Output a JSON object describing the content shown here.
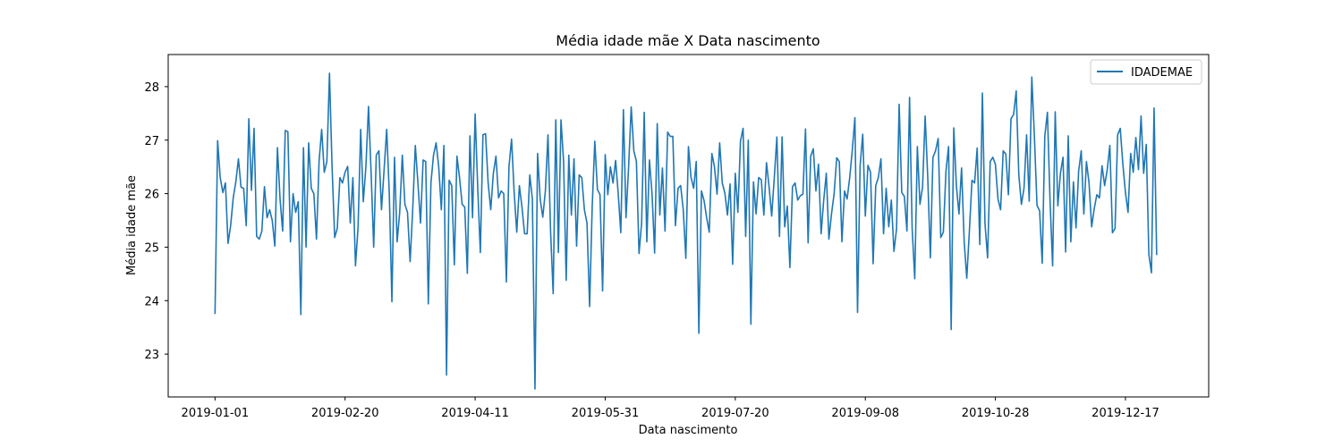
{
  "chart_data": {
    "type": "line",
    "title": "Média idade mãe X Data nascimento",
    "xlabel": "Data nascimento",
    "ylabel": "Média idade mãe",
    "xlim": [
      "2018-12-14",
      "2020-01-18"
    ],
    "ylim": [
      22.2,
      28.6
    ],
    "grid": false,
    "legend_position": "top-right",
    "x_start": "2019-01-01",
    "x_tick_labels": [
      "2019-01-01",
      "2019-02-20",
      "2019-04-11",
      "2019-05-31",
      "2019-07-20",
      "2019-09-08",
      "2019-10-28",
      "2019-12-17"
    ],
    "y_tick_labels": [
      "23",
      "24",
      "25",
      "26",
      "27",
      "28"
    ],
    "series": [
      {
        "name": "IDADEMAE",
        "color": "#1f77b4",
        "values": [
          23.75,
          26.99,
          26.3,
          26.02,
          26.2,
          25.07,
          25.4,
          25.92,
          26.22,
          26.65,
          26.12,
          26.1,
          25.4,
          27.4,
          26.06,
          27.22,
          25.2,
          25.15,
          25.3,
          26.13,
          25.55,
          25.7,
          25.5,
          25.02,
          26.86,
          25.9,
          25.3,
          27.18,
          27.16,
          25.1,
          26.0,
          25.65,
          25.85,
          23.74,
          26.86,
          25.0,
          26.95,
          26.1,
          26.0,
          25.15,
          26.6,
          27.2,
          26.4,
          26.6,
          28.25,
          26.5,
          25.18,
          25.35,
          26.3,
          26.2,
          26.4,
          26.51,
          25.45,
          26.3,
          24.65,
          25.38,
          27.2,
          25.85,
          26.5,
          27.63,
          26.4,
          25.0,
          26.72,
          26.8,
          25.7,
          26.45,
          27.2,
          26.0,
          23.98,
          26.68,
          25.1,
          25.65,
          26.72,
          25.8,
          25.65,
          24.73,
          25.7,
          26.9,
          26.2,
          25.45,
          26.63,
          26.6,
          23.94,
          26.2,
          26.72,
          26.95,
          26.5,
          25.7,
          26.9,
          22.61,
          26.25,
          26.15,
          24.67,
          26.7,
          26.3,
          25.8,
          25.75,
          24.51,
          27.08,
          25.55,
          27.49,
          26.1,
          24.9,
          27.1,
          27.12,
          26.2,
          25.7,
          26.38,
          26.7,
          25.92,
          26.05,
          26.0,
          24.35,
          26.5,
          27.02,
          26.02,
          25.28,
          26.15,
          25.75,
          25.25,
          25.25,
          26.35,
          25.9,
          22.35,
          26.75,
          25.9,
          25.56,
          26.05,
          27.1,
          25.3,
          24.13,
          27.38,
          24.9,
          27.38,
          26.6,
          24.38,
          26.72,
          25.6,
          26.65,
          25.02,
          26.35,
          26.3,
          25.7,
          25.45,
          23.89,
          25.75,
          26.98,
          26.08,
          25.98,
          24.18,
          26.73,
          25.98,
          26.5,
          26.2,
          26.62,
          26.0,
          25.27,
          27.57,
          25.55,
          26.5,
          27.62,
          26.8,
          26.6,
          24.88,
          25.45,
          27.52,
          25.1,
          26.63,
          26.0,
          24.89,
          27.31,
          25.6,
          26.48,
          25.3,
          27.15,
          27.07,
          27.07,
          25.4,
          26.1,
          26.15,
          25.7,
          24.79,
          26.88,
          26.3,
          26.1,
          26.6,
          23.39,
          26.05,
          25.87,
          25.55,
          25.28,
          26.75,
          26.5,
          25.99,
          26.95,
          26.2,
          26.01,
          25.6,
          26.18,
          24.68,
          26.38,
          25.65,
          26.98,
          27.22,
          25.2,
          27.0,
          23.56,
          26.22,
          25.62,
          26.3,
          26.26,
          25.6,
          26.58,
          26.13,
          25.58,
          26.3,
          27.06,
          25.2,
          27.06,
          25.38,
          25.77,
          24.62,
          26.13,
          26.2,
          25.88,
          25.96,
          25.99,
          27.21,
          25.08,
          26.7,
          26.84,
          26.05,
          26.55,
          25.25,
          25.88,
          26.38,
          25.15,
          25.62,
          26.0,
          26.67,
          26.6,
          25.1,
          26.05,
          25.9,
          26.3,
          26.82,
          27.42,
          23.78,
          26.53,
          27.11,
          25.58,
          26.53,
          26.4,
          24.69,
          26.15,
          26.3,
          26.65,
          25.25,
          26.1,
          25.38,
          25.88,
          24.92,
          25.34,
          27.67,
          26.02,
          25.95,
          25.3,
          27.8,
          25.35,
          24.41,
          26.88,
          25.8,
          26.12,
          27.45,
          26.3,
          24.8,
          26.68,
          26.8,
          27.03,
          25.18,
          25.28,
          26.42,
          26.88,
          23.46,
          27.23,
          26.15,
          25.62,
          26.48,
          25.1,
          24.42,
          25.3,
          26.25,
          26.2,
          26.85,
          25.05,
          27.88,
          25.44,
          24.8,
          26.6,
          26.68,
          26.55,
          25.9,
          25.7,
          26.8,
          26.74,
          25.98,
          27.4,
          27.48,
          27.92,
          26.35,
          25.8,
          26.1,
          27.1,
          25.86,
          28.18,
          27.06,
          25.78,
          25.68,
          24.7,
          27.08,
          27.52,
          25.88,
          24.65,
          27.53,
          25.77,
          26.38,
          26.68,
          24.91,
          27.08,
          25.1,
          26.22,
          25.36,
          26.42,
          26.8,
          25.62,
          26.6,
          26.2,
          25.38,
          25.72,
          25.98,
          25.92,
          26.52,
          26.15,
          26.45,
          26.9,
          25.27,
          25.35,
          27.1,
          27.22,
          26.55,
          26.02,
          25.65,
          26.75,
          26.4,
          27.05,
          26.45,
          27.45,
          26.38,
          26.92,
          24.86,
          24.52,
          27.6,
          24.85
        ]
      }
    ]
  }
}
